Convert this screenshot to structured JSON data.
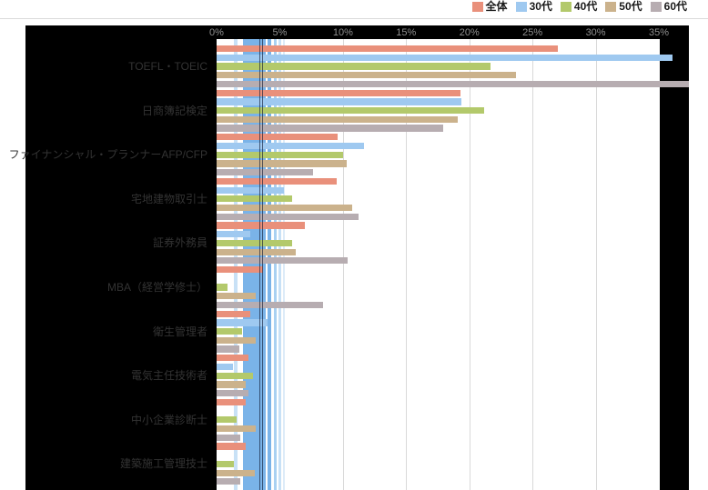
{
  "chart_data": {
    "type": "bar",
    "orientation": "horizontal",
    "title": "",
    "xlabel": "",
    "ylabel": "",
    "unit": "%",
    "xlim": [
      0,
      35
    ],
    "x_ticks": [
      "0%",
      "5%",
      "10%",
      "15%",
      "20%",
      "25%",
      "30%",
      "35%"
    ],
    "grid": true,
    "legend_position": "top-right",
    "categories": [
      "TOEFL・TOEIC",
      "日商簿記検定",
      "ファイナンシャル・プランナーAFP/CFP",
      "宅地建物取引士",
      "証券外務員",
      "MBA（経営学修士）",
      "衛生管理者",
      "電気主任技術者",
      "中小企業診断士",
      "建築施工管理技士"
    ],
    "series": [
      {
        "name": "全体",
        "color": "#E9907B",
        "values": [
          27.0,
          19.3,
          9.6,
          9.5,
          7.0,
          3.7,
          2.7,
          2.5,
          2.3,
          2.3
        ]
      },
      {
        "name": "30代",
        "color": "#9FC9F0",
        "values": [
          36.1,
          19.4,
          11.7,
          5.3,
          2.7,
          0.0,
          4.0,
          1.3,
          0.0,
          0.0
        ]
      },
      {
        "name": "40代",
        "color": "#B3C96B",
        "values": [
          21.7,
          21.2,
          10.0,
          6.0,
          6.0,
          0.9,
          2.0,
          2.9,
          1.6,
          1.4
        ]
      },
      {
        "name": "50代",
        "color": "#CBB28C",
        "values": [
          23.7,
          19.1,
          10.3,
          10.7,
          6.3,
          3.1,
          3.1,
          2.3,
          3.1,
          3.0
        ]
      },
      {
        "name": "60代",
        "color": "#B7ADB1",
        "values": [
          37.4,
          17.9,
          7.6,
          11.2,
          10.4,
          8.4,
          1.8,
          2.5,
          1.9,
          1.9
        ]
      }
    ]
  },
  "colors": {
    "canvas_bg": "#000000",
    "plot_bg": "#ffffff",
    "gridline": "#D9D9D9",
    "tick_text": "#8F8F8F",
    "category_text": "#333333",
    "top_rule": "#DBDBDB",
    "band_navy": "#101C38"
  },
  "overlay_band": {
    "stripes": [
      {
        "x": 19,
        "w": 4,
        "color": "#C8E1F6"
      },
      {
        "x": 29,
        "w": 25,
        "color": "#7AB3E8"
      },
      {
        "x": 56,
        "w": 4,
        "color": "#7AB3E8"
      },
      {
        "x": 63,
        "w": 3,
        "color": "#A9D1F2"
      },
      {
        "x": 68,
        "w": 3,
        "color": "#C8E1F6"
      },
      {
        "x": 73,
        "w": 2,
        "color": "#DDEBF8"
      }
    ],
    "navy_lines": [
      {
        "x": 47.0,
        "w": 1.3
      },
      {
        "x": 49.6,
        "w": 1.3
      }
    ]
  }
}
